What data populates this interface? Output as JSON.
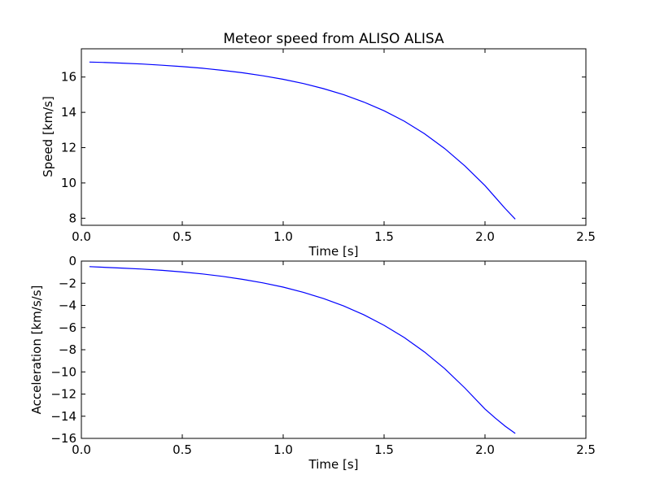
{
  "figure": {
    "title": "Meteor speed from  ALISO ALISA"
  },
  "chart_data": [
    {
      "type": "line",
      "title": "Meteor speed from  ALISO ALISA",
      "xlabel": "Time [s]",
      "ylabel": "Speed [km/s]",
      "xlim": [
        0,
        2.5
      ],
      "ylim": [
        7.6,
        17.6
      ],
      "xticks": [
        "0.0",
        "0.5",
        "1.0",
        "1.5",
        "2.0",
        "2.5"
      ],
      "yticks": [
        "8",
        "10",
        "12",
        "14",
        "16"
      ],
      "xtick_values": [
        0,
        0.5,
        1.0,
        1.5,
        2.0,
        2.5
      ],
      "ytick_values": [
        8,
        10,
        12,
        14,
        16
      ],
      "grid": false,
      "series": [
        {
          "color": "#0000ff",
          "x": [
            0.04,
            0.1,
            0.2,
            0.3,
            0.4,
            0.5,
            0.6,
            0.7,
            0.8,
            0.9,
            1.0,
            1.1,
            1.2,
            1.3,
            1.4,
            1.5,
            1.6,
            1.7,
            1.8,
            1.9,
            2.0,
            2.05,
            2.1,
            2.15
          ],
          "y": [
            16.85,
            16.83,
            16.79,
            16.74,
            16.67,
            16.59,
            16.5,
            16.38,
            16.24,
            16.07,
            15.87,
            15.63,
            15.34,
            15.0,
            14.58,
            14.09,
            13.5,
            12.79,
            11.95,
            10.97,
            9.85,
            9.2,
            8.55,
            7.95
          ]
        }
      ]
    },
    {
      "type": "line",
      "title": "",
      "xlabel": "Time [s]",
      "ylabel": "Acceleration [km/s/s]",
      "xlim": [
        0,
        2.5
      ],
      "ylim": [
        -16,
        0
      ],
      "xticks": [
        "0.0",
        "0.5",
        "1.0",
        "1.5",
        "2.0",
        "2.5"
      ],
      "yticks": [
        "0",
        "−2",
        "−4",
        "−6",
        "−8",
        "−10",
        "−12",
        "−14",
        "−16"
      ],
      "xtick_values": [
        0,
        0.5,
        1.0,
        1.5,
        2.0,
        2.5
      ],
      "ytick_values": [
        0,
        -2,
        -4,
        -6,
        -8,
        -10,
        -12,
        -14,
        -16
      ],
      "grid": false,
      "series": [
        {
          "color": "#0000ff",
          "x": [
            0.04,
            0.1,
            0.2,
            0.3,
            0.4,
            0.5,
            0.6,
            0.7,
            0.8,
            0.9,
            1.0,
            1.1,
            1.2,
            1.3,
            1.4,
            1.5,
            1.6,
            1.7,
            1.8,
            1.9,
            2.0,
            2.05,
            2.1,
            2.15
          ],
          "y": [
            -0.5,
            -0.55,
            -0.63,
            -0.72,
            -0.84,
            -0.98,
            -1.16,
            -1.38,
            -1.65,
            -1.97,
            -2.35,
            -2.82,
            -3.38,
            -4.05,
            -4.85,
            -5.8,
            -6.9,
            -8.2,
            -9.7,
            -11.45,
            -13.35,
            -14.15,
            -14.9,
            -15.55
          ]
        }
      ]
    }
  ]
}
